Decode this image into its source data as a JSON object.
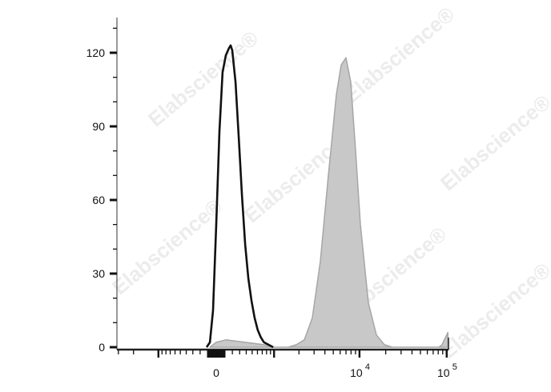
{
  "chart_data": {
    "type": "area",
    "title": "",
    "xlabel": "",
    "ylabel": "",
    "x_scale": "biexponential",
    "xlim": [
      -3100,
      103000
    ],
    "ylim": [
      0,
      134
    ],
    "grid": false,
    "y_ticks": [
      0,
      30,
      60,
      90,
      120
    ],
    "y_tick_labels": [
      "0",
      "30",
      "60",
      "90",
      "120"
    ],
    "x_tick_labels": [
      {
        "value": 0,
        "base": "0",
        "exp": ""
      },
      {
        "value": 10000,
        "base": "10",
        "exp": "4"
      },
      {
        "value": 100000,
        "base": "10",
        "exp": "5"
      }
    ],
    "series": [
      {
        "style": "filled",
        "color": "#c8c8c8",
        "edge": "#a6a6a6",
        "x": [
          -77,
          0,
          117,
          383,
          739,
          1000,
          1497,
          1861,
          2311,
          2864,
          3545,
          4387,
          5430,
          6162,
          6995,
          7948,
          9029,
          10240,
          12657,
          15640,
          19330,
          23870,
          81300,
          88400,
          103000
        ],
        "y": [
          0,
          2,
          3,
          2,
          1,
          0,
          0,
          1,
          3,
          12,
          35,
          70,
          103,
          115,
          118,
          108,
          80,
          50,
          18,
          5,
          1,
          0,
          0,
          1,
          6
        ]
      },
      {
        "style": "line",
        "color": "#111111",
        "x": [
          -117,
          -77,
          -39,
          0,
          39,
          77,
          117,
          158,
          178,
          199,
          242,
          288,
          334,
          383,
          434,
          488,
          545,
          606,
          670,
          739,
          850,
          974
        ],
        "y": [
          0,
          2,
          15,
          50,
          88,
          112,
          119,
          122,
          123,
          121,
          108,
          85,
          62,
          42,
          28,
          19,
          12,
          7,
          4,
          2,
          1,
          0
        ]
      }
    ]
  },
  "watermark": {
    "text": "Elabscience",
    "mark": "®"
  }
}
